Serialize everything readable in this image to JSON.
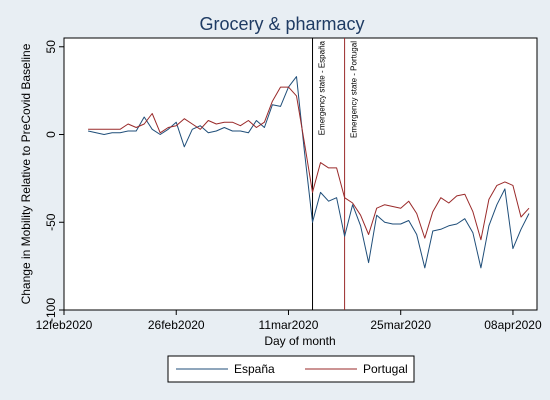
{
  "chart_data": {
    "type": "line",
    "title": "Grocery & pharmacy",
    "xlabel": "Day of month",
    "ylabel": "Change in Mobility Relative to PreCovid Baseline",
    "x_start": "2020-02-15",
    "xlim": [
      "2020-02-12",
      "2020-04-11"
    ],
    "ylim": [
      -100,
      55
    ],
    "x_ticks": [
      {
        "date": "2020-02-12",
        "label": "12feb2020"
      },
      {
        "date": "2020-02-26",
        "label": "26feb2020"
      },
      {
        "date": "2020-03-11",
        "label": "11mar2020"
      },
      {
        "date": "2020-03-25",
        "label": "25mar2020"
      },
      {
        "date": "2020-04-08",
        "label": "08apr2020"
      }
    ],
    "y_ticks": [
      {
        "value": 50,
        "label": "50"
      },
      {
        "value": 0,
        "label": "0"
      },
      {
        "value": -50,
        "label": "-50"
      },
      {
        "value": -100,
        "label": "-100"
      }
    ],
    "grid": false,
    "legend_position": "bottom",
    "annotations": [
      {
        "date": "2020-03-14",
        "label": "Emergency state - España",
        "color": "#000000"
      },
      {
        "date": "2020-03-18",
        "label": "Emergency state - Portugal",
        "color": "#9a2a2a"
      }
    ],
    "series": [
      {
        "name": "España",
        "color": "#1f4e79",
        "values": [
          2,
          1,
          0,
          1,
          1,
          2,
          2,
          10,
          3,
          0,
          3,
          7,
          -7,
          3,
          5,
          1,
          2,
          4,
          2,
          2,
          1,
          8,
          4,
          17,
          16,
          27,
          33,
          -10,
          -50,
          -33,
          -38,
          -36,
          -58,
          -40,
          -52,
          -73,
          -46,
          -50,
          -51,
          -51,
          -49,
          -57,
          -76,
          -55,
          -54,
          -52,
          -51,
          -48,
          -56,
          -76,
          -52,
          -40,
          -31,
          -65,
          -54,
          -45
        ]
      },
      {
        "name": "Portugal",
        "color": "#9a2a2a",
        "values": [
          3,
          3,
          3,
          3,
          3,
          6,
          4,
          6,
          12,
          1,
          4,
          5,
          9,
          6,
          3,
          8,
          6,
          7,
          7,
          5,
          8,
          4,
          7,
          19,
          27,
          27,
          22,
          -5,
          -33,
          -16,
          -19,
          -19,
          -36,
          -39,
          -46,
          -57,
          -42,
          -40,
          -41,
          -42,
          -38,
          -45,
          -59,
          -44,
          -36,
          -39,
          -35,
          -34,
          -44,
          -60,
          -37,
          -29,
          -27,
          -29,
          -47,
          -42
        ]
      }
    ]
  }
}
